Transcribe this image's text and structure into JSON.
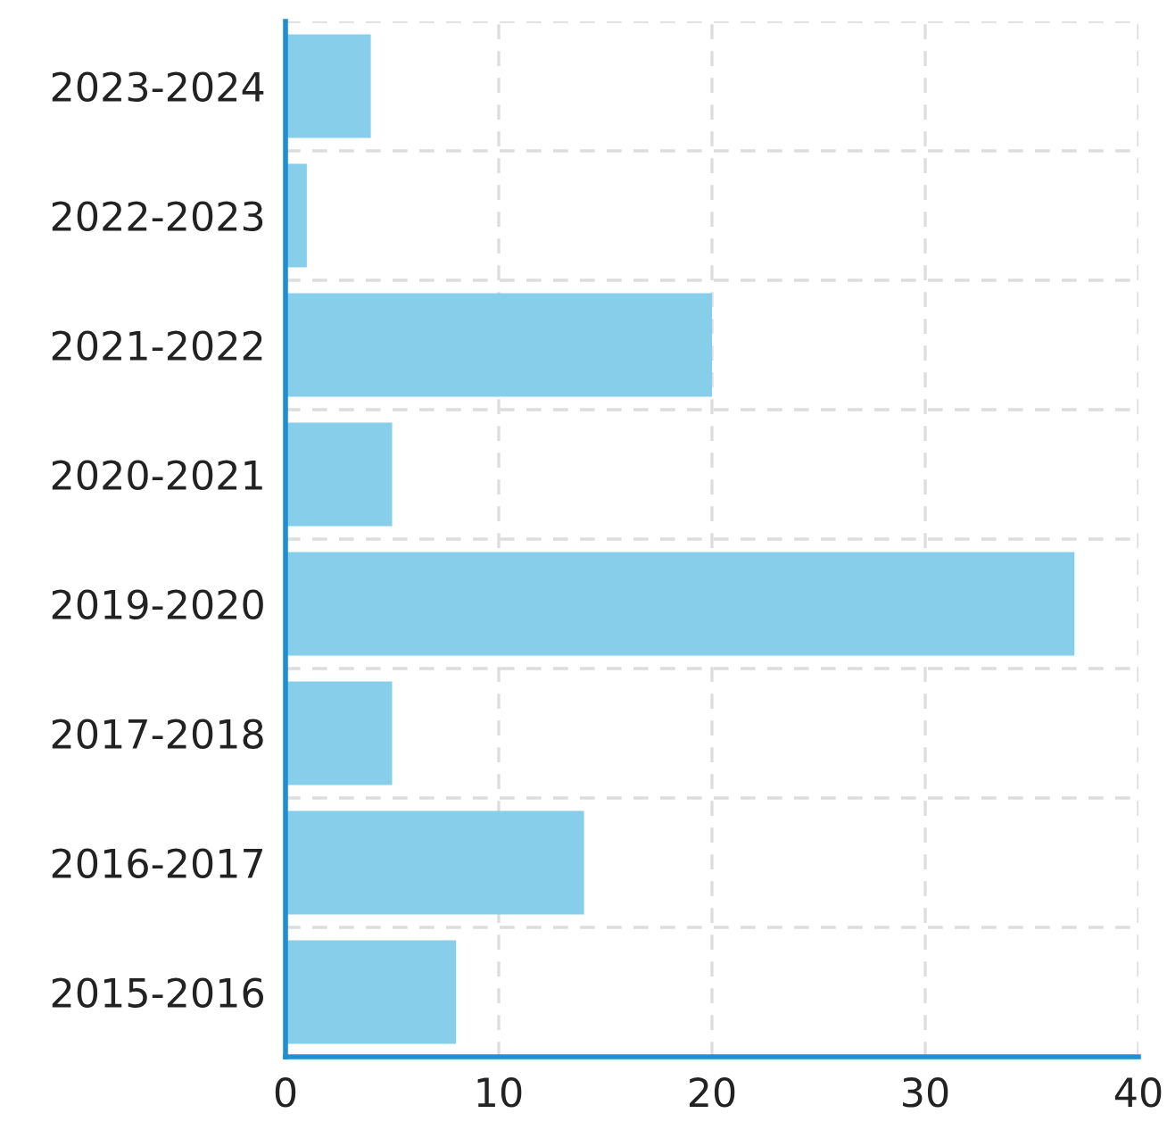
{
  "chart_data": {
    "type": "bar",
    "orientation": "horizontal",
    "categories": [
      "2023-2024",
      "2022-2023",
      "2021-2022",
      "2020-2021",
      "2019-2020",
      "2017-2018",
      "2016-2017",
      "2015-2016"
    ],
    "values": [
      4,
      1,
      20,
      5,
      37,
      5,
      14,
      8
    ],
    "color": "#87ceeb",
    "xlim": [
      0,
      40
    ],
    "xticks": [
      0,
      10,
      20,
      30,
      40
    ],
    "grid": true
  }
}
